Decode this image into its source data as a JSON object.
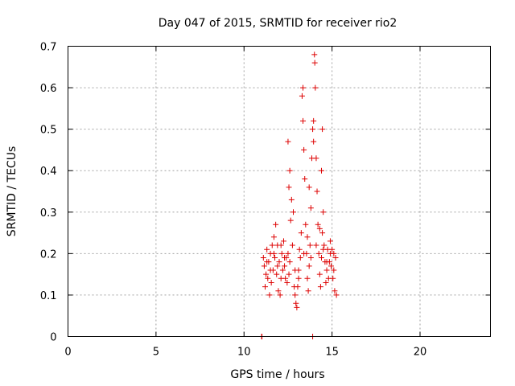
{
  "chart_data": {
    "type": "scatter",
    "title": "Day 047 of 2015, SRMTID for receiver rio2",
    "xlabel": "GPS time / hours",
    "ylabel": "SRMTID / TECUs",
    "xlim": [
      0,
      24
    ],
    "ylim": [
      0,
      0.7
    ],
    "xticks": [
      0,
      5,
      10,
      15,
      20
    ],
    "xtick_labels": [
      "0",
      "5",
      "10",
      "15",
      "20"
    ],
    "yticks": [
      0,
      0.1,
      0.2,
      0.3,
      0.4,
      0.5,
      0.6,
      0.7
    ],
    "ytick_labels": [
      "0",
      "0.1",
      "0.2",
      "0.3",
      "0.4",
      "0.5",
      "0.6",
      "0.7"
    ],
    "grid": true,
    "marker": "+",
    "color": "#dd0000",
    "series": [
      {
        "name": "SRMTID rio2",
        "points": [
          [
            11.0,
            0.0
          ],
          [
            11.02,
            0.0
          ],
          [
            13.9,
            0.0
          ],
          [
            11.1,
            0.19
          ],
          [
            11.15,
            0.17
          ],
          [
            11.2,
            0.12
          ],
          [
            11.25,
            0.15
          ],
          [
            11.3,
            0.21
          ],
          [
            11.35,
            0.14
          ],
          [
            11.4,
            0.18
          ],
          [
            11.45,
            0.1
          ],
          [
            11.5,
            0.2
          ],
          [
            11.55,
            0.13
          ],
          [
            11.6,
            0.22
          ],
          [
            11.65,
            0.16
          ],
          [
            11.7,
            0.24
          ],
          [
            11.75,
            0.19
          ],
          [
            11.8,
            0.27
          ],
          [
            11.85,
            0.15
          ],
          [
            11.9,
            0.22
          ],
          [
            11.95,
            0.11
          ],
          [
            12.0,
            0.18
          ],
          [
            12.05,
            0.1
          ],
          [
            12.1,
            0.14
          ],
          [
            12.15,
            0.2
          ],
          [
            12.2,
            0.16
          ],
          [
            12.25,
            0.23
          ],
          [
            12.3,
            0.17
          ],
          [
            12.35,
            0.14
          ],
          [
            12.4,
            0.19
          ],
          [
            12.45,
            0.13
          ],
          [
            12.5,
            0.2
          ],
          [
            12.55,
            0.15
          ],
          [
            12.5,
            0.47
          ],
          [
            12.55,
            0.36
          ],
          [
            12.6,
            0.4
          ],
          [
            12.65,
            0.28
          ],
          [
            12.7,
            0.33
          ],
          [
            12.75,
            0.22
          ],
          [
            12.8,
            0.3
          ],
          [
            12.85,
            0.12
          ],
          [
            12.9,
            0.1
          ],
          [
            12.95,
            0.08
          ],
          [
            13.0,
            0.07
          ],
          [
            13.05,
            0.12
          ],
          [
            13.1,
            0.16
          ],
          [
            13.15,
            0.21
          ],
          [
            13.2,
            0.19
          ],
          [
            13.25,
            0.25
          ],
          [
            13.3,
            0.58
          ],
          [
            13.35,
            0.52
          ],
          [
            13.4,
            0.45
          ],
          [
            13.45,
            0.38
          ],
          [
            13.5,
            0.27
          ],
          [
            13.55,
            0.2
          ],
          [
            13.6,
            0.14
          ],
          [
            13.65,
            0.11
          ],
          [
            13.7,
            0.17
          ],
          [
            13.75,
            0.22
          ],
          [
            13.8,
            0.31
          ],
          [
            13.85,
            0.43
          ],
          [
            13.9,
            0.5
          ],
          [
            13.95,
            0.47
          ],
          [
            14.0,
            0.68
          ],
          [
            14.02,
            0.66
          ],
          [
            14.05,
            0.6
          ],
          [
            14.1,
            0.43
          ],
          [
            14.15,
            0.35
          ],
          [
            14.2,
            0.27
          ],
          [
            14.25,
            0.2
          ],
          [
            14.3,
            0.15
          ],
          [
            14.35,
            0.12
          ],
          [
            14.4,
            0.19
          ],
          [
            14.45,
            0.25
          ],
          [
            14.5,
            0.3
          ],
          [
            14.55,
            0.22
          ],
          [
            14.6,
            0.18
          ],
          [
            14.65,
            0.13
          ],
          [
            14.7,
            0.16
          ],
          [
            14.75,
            0.21
          ],
          [
            14.8,
            0.14
          ],
          [
            14.85,
            0.18
          ],
          [
            14.9,
            0.23
          ],
          [
            14.95,
            0.17
          ],
          [
            15.0,
            0.21
          ],
          [
            15.05,
            0.14
          ],
          [
            15.1,
            0.2
          ],
          [
            15.15,
            0.11
          ],
          [
            15.2,
            0.19
          ],
          [
            15.25,
            0.1
          ],
          [
            11.3,
            0.18
          ],
          [
            11.5,
            0.16
          ],
          [
            11.7,
            0.2
          ],
          [
            11.9,
            0.17
          ],
          [
            12.1,
            0.22
          ],
          [
            12.3,
            0.19
          ],
          [
            12.6,
            0.18
          ],
          [
            12.9,
            0.16
          ],
          [
            13.1,
            0.14
          ],
          [
            13.4,
            0.2
          ],
          [
            13.6,
            0.24
          ],
          [
            13.8,
            0.19
          ],
          [
            14.1,
            0.22
          ],
          [
            14.3,
            0.26
          ],
          [
            14.5,
            0.21
          ],
          [
            14.7,
            0.18
          ],
          [
            14.9,
            0.2
          ],
          [
            15.1,
            0.16
          ],
          [
            13.35,
            0.6
          ],
          [
            13.95,
            0.52
          ],
          [
            14.4,
            0.4
          ],
          [
            14.45,
            0.5
          ],
          [
            13.7,
            0.36
          ]
        ]
      }
    ]
  }
}
